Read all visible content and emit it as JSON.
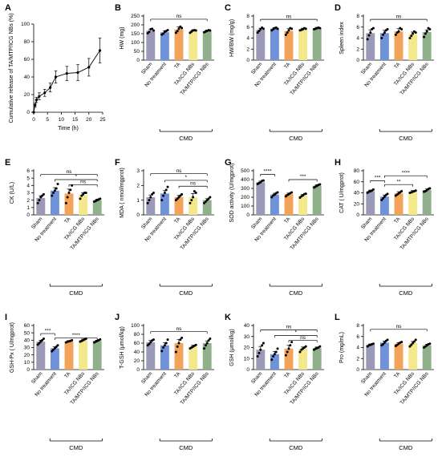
{
  "colors": {
    "groups": [
      "#9a9ab8",
      "#6f92d8",
      "#f2a35a",
      "#f4e88c",
      "#8fb08a"
    ],
    "line": "#000000",
    "point": "#000000"
  },
  "chart_data": [
    {
      "panel": "A",
      "type": "line",
      "xlabel": "Time (h)",
      "ylabel": "Cumulative release of TA/MTP/ICG NBs (%)",
      "xlim": [
        0,
        25
      ],
      "ylim": [
        0,
        100
      ],
      "xticks": [
        0,
        5,
        10,
        15,
        20,
        25
      ],
      "yticks": [
        0,
        20,
        40,
        60,
        80,
        100
      ],
      "x": [
        0,
        0.5,
        1,
        2,
        4,
        6,
        8,
        12,
        16,
        20,
        24
      ],
      "y": [
        0,
        8,
        14,
        18,
        22,
        28,
        40,
        44,
        45,
        51,
        70
      ],
      "err": [
        0,
        2,
        3,
        4,
        4,
        5,
        7,
        8,
        9,
        10,
        14
      ]
    },
    {
      "panel": "B",
      "type": "bar",
      "ylabel": "HW (mg)",
      "ylim": [
        0,
        250
      ],
      "yticks": [
        0,
        50,
        100,
        150,
        200,
        250
      ],
      "categories": [
        "Sham",
        "No treatment",
        "TA",
        "TA/ICG NBs",
        "TA/MTP/ICG NBs"
      ],
      "values": [
        167,
        158,
        174,
        165,
        165
      ],
      "err": [
        8,
        9,
        14,
        7,
        6
      ],
      "points": [
        [
          152,
          160,
          175,
          178,
          168
        ],
        [
          145,
          150,
          160,
          165,
          170
        ],
        [
          155,
          165,
          178,
          190,
          182
        ],
        [
          155,
          162,
          168,
          170,
          168
        ],
        [
          158,
          162,
          166,
          170,
          168
        ]
      ],
      "sig": [
        {
          "from": 0,
          "to": 4,
          "label": "ns",
          "y": 232
        }
      ],
      "cmd": "CMD"
    },
    {
      "panel": "C",
      "type": "bar",
      "ylabel": "HW/BW (mg/g)",
      "ylim": [
        0,
        8
      ],
      "yticks": [
        0,
        2,
        4,
        6,
        8
      ],
      "categories": [
        "Sham",
        "No treatment",
        "TA",
        "TA/ICG NBs",
        "TA/MTP/ICG NBs"
      ],
      "values": [
        5.5,
        5.7,
        5.3,
        5.6,
        5.8
      ],
      "err": [
        0.3,
        0.2,
        0.4,
        0.2,
        0.15
      ],
      "points": [
        [
          5.0,
          5.3,
          5.6,
          5.9,
          5.7
        ],
        [
          5.4,
          5.6,
          5.8,
          5.9,
          5.7
        ],
        [
          4.6,
          5.0,
          5.4,
          5.8,
          5.7
        ],
        [
          5.4,
          5.5,
          5.6,
          5.8,
          5.7
        ],
        [
          5.6,
          5.7,
          5.8,
          5.9,
          5.8
        ]
      ],
      "sig": [
        {
          "from": 0,
          "to": 4,
          "label": "ns",
          "y": 7.4
        }
      ],
      "cmd": "CMD"
    },
    {
      "panel": "D",
      "type": "bar",
      "ylabel": "Spleen index",
      "ylim": [
        0,
        8
      ],
      "yticks": [
        0,
        2,
        4,
        6,
        8
      ],
      "categories": [
        "Sham",
        "No treatment",
        "TA",
        "TA/ICG NBs",
        "TA/MTP/ICG NBs"
      ],
      "values": [
        4.9,
        4.9,
        5.2,
        4.7,
        5.1
      ],
      "err": [
        0.6,
        0.5,
        0.5,
        0.4,
        0.4
      ],
      "points": [
        [
          3.8,
          4.5,
          5.0,
          5.6,
          5.8
        ],
        [
          4.0,
          4.6,
          5.0,
          5.4,
          5.6
        ],
        [
          4.6,
          5.0,
          5.2,
          5.8,
          5.6
        ],
        [
          4.0,
          4.4,
          4.8,
          5.2,
          5.0
        ],
        [
          4.2,
          4.8,
          5.2,
          5.8,
          5.6
        ]
      ],
      "sig": [
        {
          "from": 0,
          "to": 4,
          "label": "ns",
          "y": 7.4
        }
      ],
      "cmd": "CMD"
    },
    {
      "panel": "E",
      "type": "bar",
      "ylabel": "CK (U/L)",
      "ylim": [
        0,
        6
      ],
      "yticks": [
        0,
        1,
        2,
        3,
        4,
        5,
        6
      ],
      "categories": [
        "Sham",
        "No treatment",
        "TA",
        "TA/ICG NBs",
        "TA/MTP/ICG NBs"
      ],
      "values": [
        2.3,
        3.3,
        2.9,
        2.7,
        2.0
      ],
      "err": [
        0.3,
        0.4,
        0.6,
        0.3,
        0.15
      ],
      "points": [
        [
          1.6,
          2.0,
          2.4,
          2.6,
          2.8
        ],
        [
          2.6,
          3.0,
          3.3,
          3.6,
          4.2
        ],
        [
          1.6,
          2.4,
          3.0,
          3.4,
          4.0
        ],
        [
          2.2,
          2.6,
          2.8,
          3.0,
          3.0
        ],
        [
          1.8,
          1.9,
          2.0,
          2.1,
          2.2
        ]
      ],
      "sig": [
        {
          "from": 0,
          "to": 4,
          "label": "ns",
          "y": 5.5
        },
        {
          "from": 1,
          "to": 4,
          "label": "*",
          "y": 4.8
        },
        {
          "from": 2,
          "to": 4,
          "label": "ns",
          "y": 4.1
        }
      ],
      "cmd": "CMD"
    },
    {
      "panel": "F",
      "type": "bar",
      "ylabel": "MDA ( nmol/mgprot)",
      "ylim": [
        0,
        3
      ],
      "yticks": [
        0,
        1,
        2,
        3
      ],
      "categories": [
        "Sham",
        "No treatment",
        "TA",
        "TA/ICG NBs",
        "TA/MTP/ICG NBs"
      ],
      "values": [
        1.2,
        1.45,
        1.2,
        1.2,
        1.0
      ],
      "err": [
        0.15,
        0.2,
        0.12,
        0.25,
        0.1
      ],
      "points": [
        [
          0.8,
          1.0,
          1.2,
          1.4,
          1.5
        ],
        [
          1.0,
          1.3,
          1.5,
          1.7,
          1.9
        ],
        [
          1.0,
          1.1,
          1.2,
          1.3,
          1.4
        ],
        [
          0.8,
          1.0,
          1.2,
          1.6,
          1.5
        ],
        [
          0.8,
          0.9,
          1.0,
          1.1,
          1.2
        ]
      ],
      "sig": [
        {
          "from": 0,
          "to": 4,
          "label": "ns",
          "y": 2.8
        },
        {
          "from": 1,
          "to": 4,
          "label": "*",
          "y": 2.35
        },
        {
          "from": 2,
          "to": 4,
          "label": "ns",
          "y": 1.95
        }
      ],
      "cmd": "CMD"
    },
    {
      "panel": "G",
      "type": "bar",
      "ylabel": "SOD activity (U/mgprot)",
      "ylim": [
        0,
        500
      ],
      "yticks": [
        0,
        100,
        200,
        300,
        400,
        500
      ],
      "categories": [
        "Sham",
        "No treatment",
        "TA",
        "TA/ICG NBs",
        "TA/MTP/ICG NBs"
      ],
      "values": [
        370,
        230,
        235,
        220,
        330
      ],
      "err": [
        12,
        15,
        12,
        12,
        12
      ],
      "points": [
        [
          350,
          360,
          370,
          385,
          390
        ],
        [
          200,
          220,
          230,
          245,
          255
        ],
        [
          210,
          225,
          235,
          245,
          255
        ],
        [
          195,
          210,
          220,
          235,
          240
        ],
        [
          310,
          320,
          330,
          340,
          345
        ]
      ],
      "sig": [
        {
          "from": 0,
          "to": 1,
          "label": "****",
          "y": 460
        },
        {
          "from": 2,
          "to": 4,
          "label": "***",
          "y": 400
        }
      ],
      "cmd": "CMD"
    },
    {
      "panel": "H",
      "type": "bar",
      "ylabel": "CAT ( U/mgprot)",
      "ylim": [
        0,
        80
      ],
      "yticks": [
        0,
        20,
        40,
        60,
        80
      ],
      "categories": [
        "Sham",
        "No treatment",
        "TA",
        "TA/ICG NBs",
        "TA/MTP/ICG NBs"
      ],
      "values": [
        43,
        33,
        39,
        42,
        45
      ],
      "err": [
        2,
        3,
        3,
        2,
        2
      ],
      "points": [
        [
          40,
          42,
          43,
          44,
          46
        ],
        [
          27,
          30,
          33,
          36,
          38
        ],
        [
          35,
          37,
          39,
          41,
          43
        ],
        [
          40,
          41,
          42,
          43,
          44
        ],
        [
          42,
          43,
          45,
          47,
          48
        ]
      ],
      "sig": [
        {
          "from": 0,
          "to": 1,
          "label": "***",
          "y": 62
        },
        {
          "from": 1,
          "to": 3,
          "label": "**",
          "y": 55
        },
        {
          "from": 1,
          "to": 4,
          "label": "****",
          "y": 71
        }
      ],
      "cmd": "CMD"
    },
    {
      "panel": "I",
      "type": "bar",
      "ylabel": "GSH-Px ( U/mgprot)",
      "ylim": [
        0,
        60
      ],
      "yticks": [
        0,
        10,
        20,
        30,
        40,
        50,
        60
      ],
      "categories": [
        "Sham",
        "No treatment",
        "TA",
        "TA/ICG NBs",
        "TA/MTP/ICG NBs"
      ],
      "values": [
        38,
        29,
        38.5,
        40,
        39
      ],
      "err": [
        2,
        2,
        1,
        1.5,
        1
      ],
      "points": [
        [
          34,
          36,
          38,
          40,
          42
        ],
        [
          25,
          27,
          29,
          31,
          33
        ],
        [
          37,
          38,
          38.5,
          39,
          40
        ],
        [
          38,
          39,
          40,
          41,
          42
        ],
        [
          37,
          38,
          39,
          40,
          41
        ]
      ],
      "sig": [
        {
          "from": 0,
          "to": 1,
          "label": "***",
          "y": 49
        },
        {
          "from": 1,
          "to": 4,
          "label": "****",
          "y": 43
        }
      ],
      "cmd": "CMD"
    },
    {
      "panel": "J",
      "type": "bar",
      "ylabel": "T-GSH (μmol/kg)",
      "ylim": [
        0,
        100
      ],
      "yticks": [
        0,
        20,
        40,
        60,
        80,
        100
      ],
      "categories": [
        "Sham",
        "No treatment",
        "TA",
        "TA/ICG NBs",
        "TA/MTP/ICG NBs"
      ],
      "values": [
        62,
        55,
        60,
        52,
        60
      ],
      "err": [
        4,
        6,
        8,
        3,
        5
      ],
      "points": [
        [
          55,
          58,
          62,
          66,
          68
        ],
        [
          42,
          50,
          55,
          60,
          68
        ],
        [
          40,
          52,
          60,
          68,
          72
        ],
        [
          48,
          50,
          52,
          54,
          56
        ],
        [
          48,
          55,
          60,
          66,
          70
        ]
      ],
      "sig": [
        {
          "from": 0,
          "to": 4,
          "label": "ns",
          "y": 86
        }
      ],
      "cmd": "CMD"
    },
    {
      "panel": "K",
      "type": "bar",
      "ylabel": "GSH (μmol/kg)",
      "ylim": [
        0,
        40
      ],
      "yticks": [
        0,
        10,
        20,
        30,
        40
      ],
      "categories": [
        "Sham",
        "No treatment",
        "TA",
        "TA/ICG NBs",
        "TA/MTP/ICG NBs"
      ],
      "values": [
        18,
        14,
        19,
        19,
        19.5
      ],
      "err": [
        3,
        2.5,
        3,
        1.5,
        1
      ],
      "points": [
        [
          12,
          15,
          18,
          22,
          24
        ],
        [
          9,
          12,
          14,
          16,
          19
        ],
        [
          13,
          16,
          19,
          22,
          25
        ],
        [
          16,
          18,
          19,
          20,
          21
        ],
        [
          18,
          19,
          19.5,
          20,
          21
        ]
      ],
      "sig": [
        {
          "from": 0,
          "to": 4,
          "label": "ns",
          "y": 36
        },
        {
          "from": 1,
          "to": 4,
          "label": "*",
          "y": 31
        },
        {
          "from": 2,
          "to": 4,
          "label": "ns",
          "y": 26.5
        }
      ],
      "cmd": "CMD"
    },
    {
      "panel": "L",
      "type": "bar",
      "ylabel": "Pro (mg/mL)",
      "ylim": [
        0,
        8
      ],
      "yticks": [
        0,
        2,
        4,
        6,
        8
      ],
      "categories": [
        "Sham",
        "No treatment",
        "TA",
        "TA/ICG NBs",
        "TA/MTP/ICG NBs"
      ],
      "values": [
        4.5,
        4.9,
        4.7,
        4.8,
        4.4
      ],
      "err": [
        0.15,
        0.25,
        0.2,
        0.3,
        0.2
      ],
      "points": [
        [
          4.2,
          4.4,
          4.5,
          4.6,
          4.7
        ],
        [
          4.4,
          4.6,
          4.9,
          5.2,
          5.4
        ],
        [
          4.3,
          4.5,
          4.7,
          4.9,
          5.0
        ],
        [
          4.2,
          4.5,
          4.8,
          5.1,
          5.4
        ],
        [
          4.0,
          4.2,
          4.4,
          4.6,
          4.7
        ]
      ],
      "sig": [
        {
          "from": 0,
          "to": 4,
          "label": "ns",
          "y": 7.3
        }
      ],
      "cmd": "CMD"
    }
  ]
}
